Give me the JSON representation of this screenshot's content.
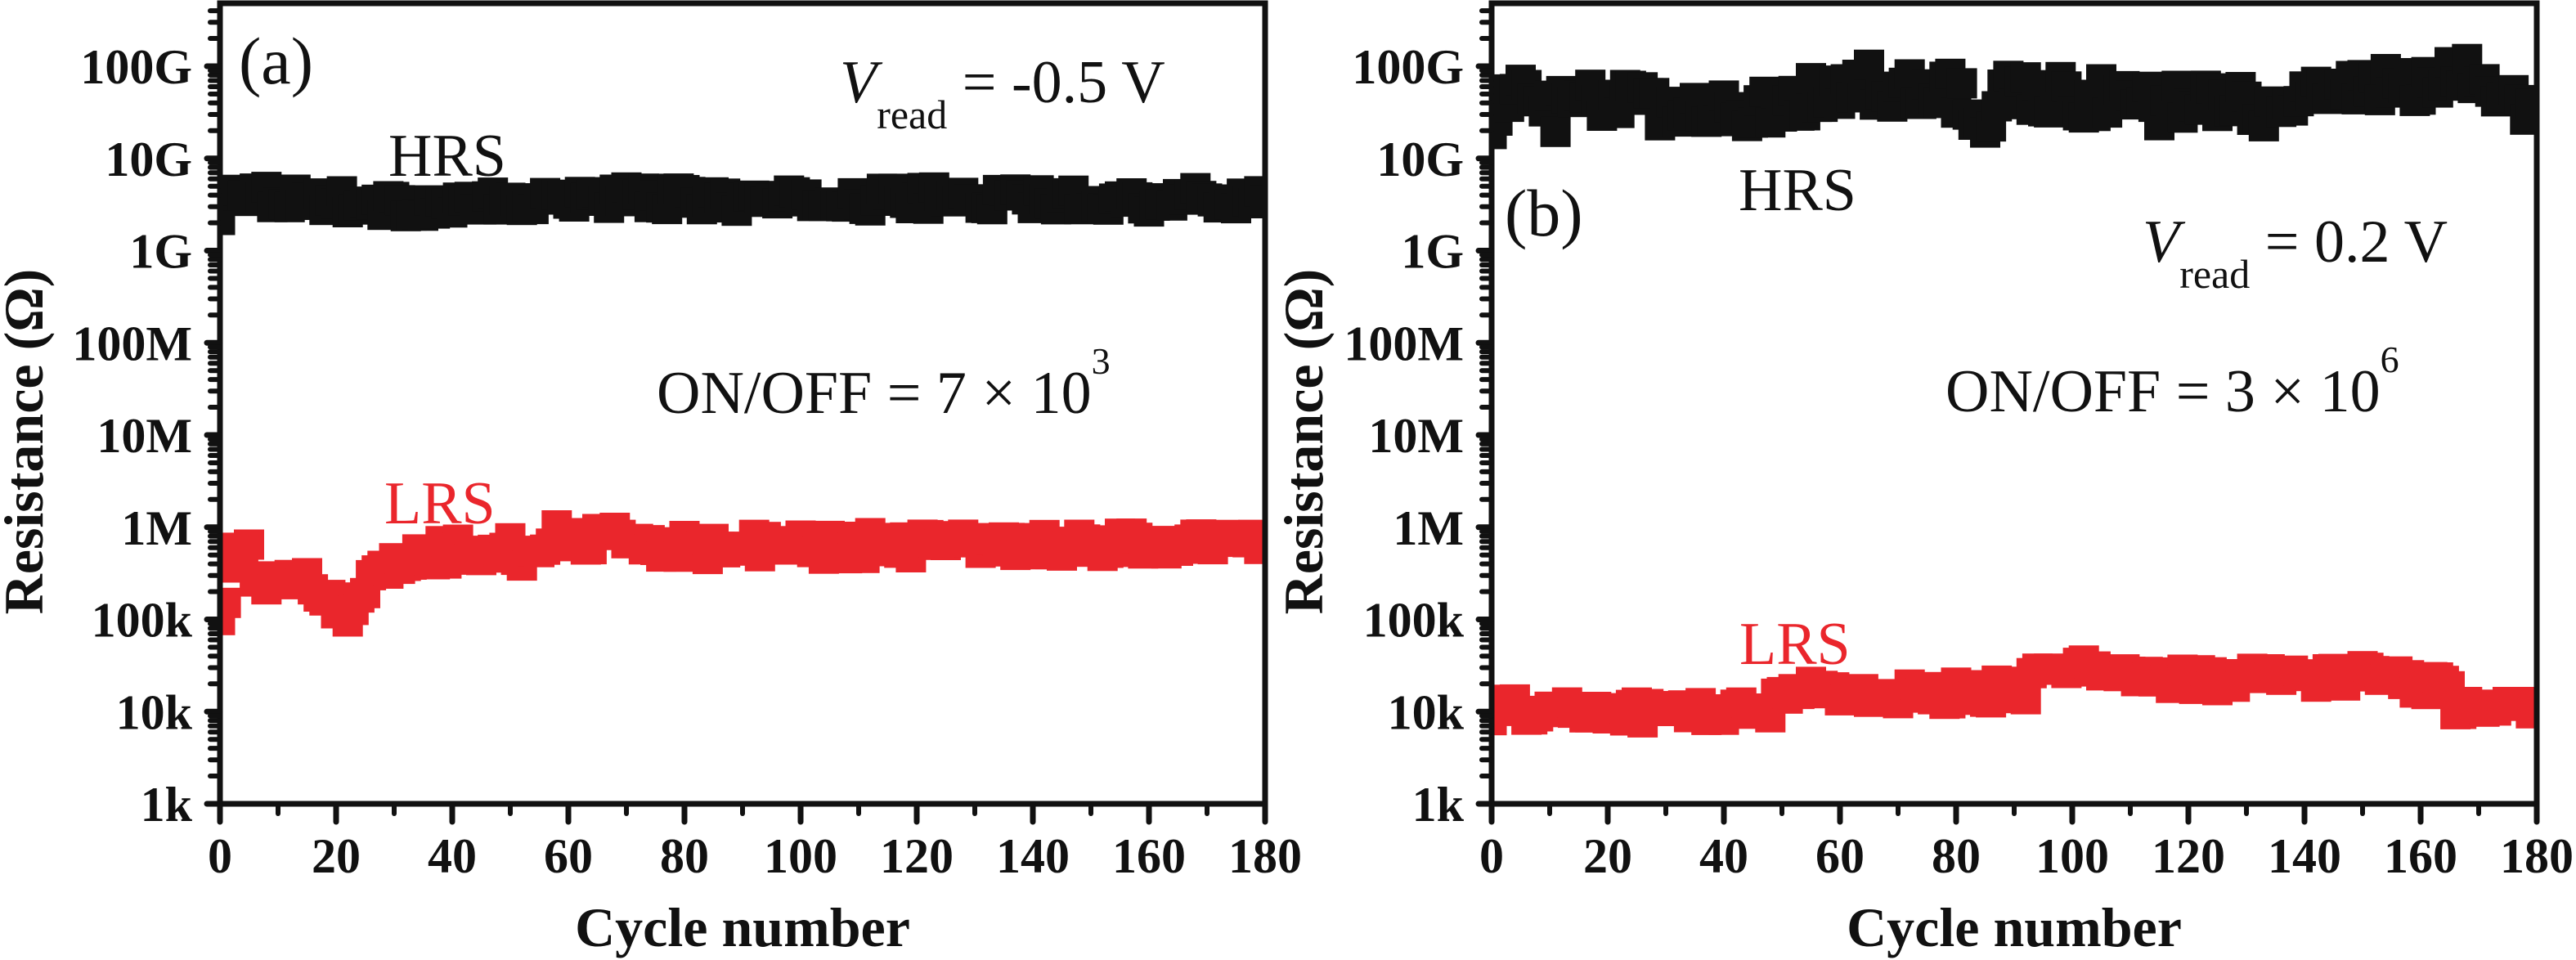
{
  "colors": {
    "hrs": "#111111",
    "lrs": "#ea262c",
    "axis": "#111111"
  },
  "chart_data": [
    {
      "type": "scatter",
      "panel_label": "(a)",
      "xlabel": "Cycle number",
      "ylabel": "Resistance (Ω)",
      "xlim": [
        0,
        180
      ],
      "ylim": [
        1000,
        500000000000
      ],
      "yscale": "log",
      "x_ticks": [
        0,
        20,
        40,
        60,
        80,
        100,
        120,
        140,
        160,
        180
      ],
      "x_tick_labels": [
        "0",
        "20",
        "40",
        "60",
        "80",
        "100",
        "120",
        "140",
        "160",
        "180"
      ],
      "y_ticks": [
        1000,
        10000,
        100000,
        1000000,
        10000000,
        100000000,
        1000000000,
        10000000000,
        100000000000
      ],
      "y_tick_labels": [
        "1k",
        "10k",
        "100k",
        "1M",
        "10M",
        "100M",
        "1G",
        "10G",
        "100G"
      ],
      "annotations": {
        "vread_symbol": "V",
        "vread_sub": "read",
        "vread_value": " = -0.5 V",
        "onoff_text": "ON/OFF = 7 × 10",
        "onoff_exp": "3"
      },
      "series": [
        {
          "name": "HRS",
          "color": "#111111",
          "x_range": [
            0,
            180
          ],
          "keypoints": [
            [
              0,
              2000000000.0
            ],
            [
              1,
              4500000000.0
            ],
            [
              3,
              5000000000.0
            ],
            [
              6,
              4200000000.0
            ],
            [
              10,
              3800000000.0
            ],
            [
              20,
              3500000000.0
            ],
            [
              30,
              3000000000.0
            ],
            [
              40,
              3100000000.0
            ],
            [
              50,
              3300000000.0
            ],
            [
              56,
              3200000000.0
            ],
            [
              60,
              3900000000.0
            ],
            [
              80,
              3600000000.0
            ],
            [
              100,
              3400000000.0
            ],
            [
              120,
              3700000000.0
            ],
            [
              140,
              3600000000.0
            ],
            [
              160,
              3500000000.0
            ],
            [
              180,
              3800000000.0
            ]
          ],
          "spread_decades": 0.12
        },
        {
          "name": "LRS",
          "color": "#ea262c",
          "x_range": [
            0,
            180
          ],
          "keypoints": [
            [
              0,
              90000.0
            ],
            [
              1,
              200000.0
            ],
            [
              3,
              450000.0
            ],
            [
              5,
              550000.0
            ],
            [
              7,
              220000.0
            ],
            [
              10,
              190000.0
            ],
            [
              14,
              380000.0
            ],
            [
              17,
              240000.0
            ],
            [
              20,
              150000.0
            ],
            [
              22,
              100000.0
            ],
            [
              25,
              250000.0
            ],
            [
              30,
              350000.0
            ],
            [
              35,
              480000.0
            ],
            [
              40,
              550000.0
            ],
            [
              45,
              520000.0
            ],
            [
              50,
              550000.0
            ],
            [
              55,
              460000.0
            ],
            [
              57,
              800000.0
            ],
            [
              70,
              700000.0
            ],
            [
              85,
              600000.0
            ],
            [
              100,
              620000.0
            ],
            [
              120,
              650000.0
            ],
            [
              133,
              720000.0
            ],
            [
              145,
              630000.0
            ],
            [
              160,
              680000.0
            ],
            [
              180,
              680000.0
            ]
          ],
          "spread_decades": 0.14
        }
      ],
      "series_labels": [
        "HRS",
        "LRS"
      ]
    },
    {
      "type": "scatter",
      "panel_label": "(b)",
      "xlabel": "Cycle number",
      "ylabel": "Resistance (Ω)",
      "xlim": [
        0,
        180
      ],
      "ylim": [
        1000,
        500000000000
      ],
      "yscale": "log",
      "x_ticks": [
        0,
        20,
        40,
        60,
        80,
        100,
        120,
        140,
        160,
        180
      ],
      "x_tick_labels": [
        "0",
        "20",
        "40",
        "60",
        "80",
        "100",
        "120",
        "140",
        "160",
        "180"
      ],
      "y_ticks": [
        1000,
        10000,
        100000,
        1000000,
        10000000,
        100000000,
        1000000000,
        10000000000,
        100000000000
      ],
      "y_tick_labels": [
        "1k",
        "10k",
        "100k",
        "1M",
        "10M",
        "100M",
        "1G",
        "10G",
        "100G"
      ],
      "annotations": {
        "vread_symbol": "V",
        "vread_sub": "read",
        "vread_value": " = 0.2 V",
        "onoff_text": "ON/OFF = 3 × 10",
        "onoff_exp": "6"
      },
      "series": [
        {
          "name": "HRS",
          "color": "#111111",
          "x_range": [
            0,
            180
          ],
          "keypoints": [
            [
              0,
              30000000000.0
            ],
            [
              5,
              55000000000.0
            ],
            [
              10,
              30000000000.0
            ],
            [
              15,
              42000000000.0
            ],
            [
              20,
              35000000000.0
            ],
            [
              25,
              48000000000.0
            ],
            [
              30,
              26000000000.0
            ],
            [
              35,
              33000000000.0
            ],
            [
              40,
              40000000000.0
            ],
            [
              45,
              28000000000.0
            ],
            [
              50,
              45000000000.0
            ],
            [
              60,
              55000000000.0
            ],
            [
              65,
              65000000000.0
            ],
            [
              70,
              50000000000.0
            ],
            [
              80,
              52000000000.0
            ],
            [
              85,
              30000000000.0
            ],
            [
              90,
              55000000000.0
            ],
            [
              100,
              45000000000.0
            ],
            [
              110,
              50000000000.0
            ],
            [
              115,
              30000000000.0
            ],
            [
              120,
              50000000000.0
            ],
            [
              130,
              45000000000.0
            ],
            [
              135,
              30000000000.0
            ],
            [
              140,
              55000000000.0
            ],
            [
              150,
              60000000000.0
            ],
            [
              160,
              55000000000.0
            ],
            [
              165,
              70000000000.0
            ],
            [
              170,
              80000000000.0
            ],
            [
              175,
              60000000000.0
            ],
            [
              179,
              30000000000.0
            ],
            [
              180,
              25000000000.0
            ]
          ],
          "spread_decades": 0.22
        },
        {
          "name": "LRS",
          "color": "#ea262c",
          "x_range": [
            0,
            180
          ],
          "keypoints": [
            [
              0,
              10500.0
            ],
            [
              20,
              10000.0
            ],
            [
              40,
              10000.0
            ],
            [
              48,
              10500.0
            ],
            [
              50,
              18000.0
            ],
            [
              60,
              16000.0
            ],
            [
              70,
              15000.0
            ],
            [
              80,
              16000.0
            ],
            [
              92,
              17000.0
            ],
            [
              94,
              36000.0
            ],
            [
              100,
              28000.0
            ],
            [
              110,
              25000.0
            ],
            [
              115,
              22000.0
            ],
            [
              130,
              22000.0
            ],
            [
              140,
              24000.0
            ],
            [
              155,
              25000.0
            ],
            [
              157,
              19000.0
            ],
            [
              165,
              20000.0
            ],
            [
              166,
              11000.0
            ],
            [
              180,
              11000.0
            ]
          ],
          "spread_decades": 0.12
        }
      ],
      "series_labels": [
        "HRS",
        "LRS"
      ]
    }
  ]
}
